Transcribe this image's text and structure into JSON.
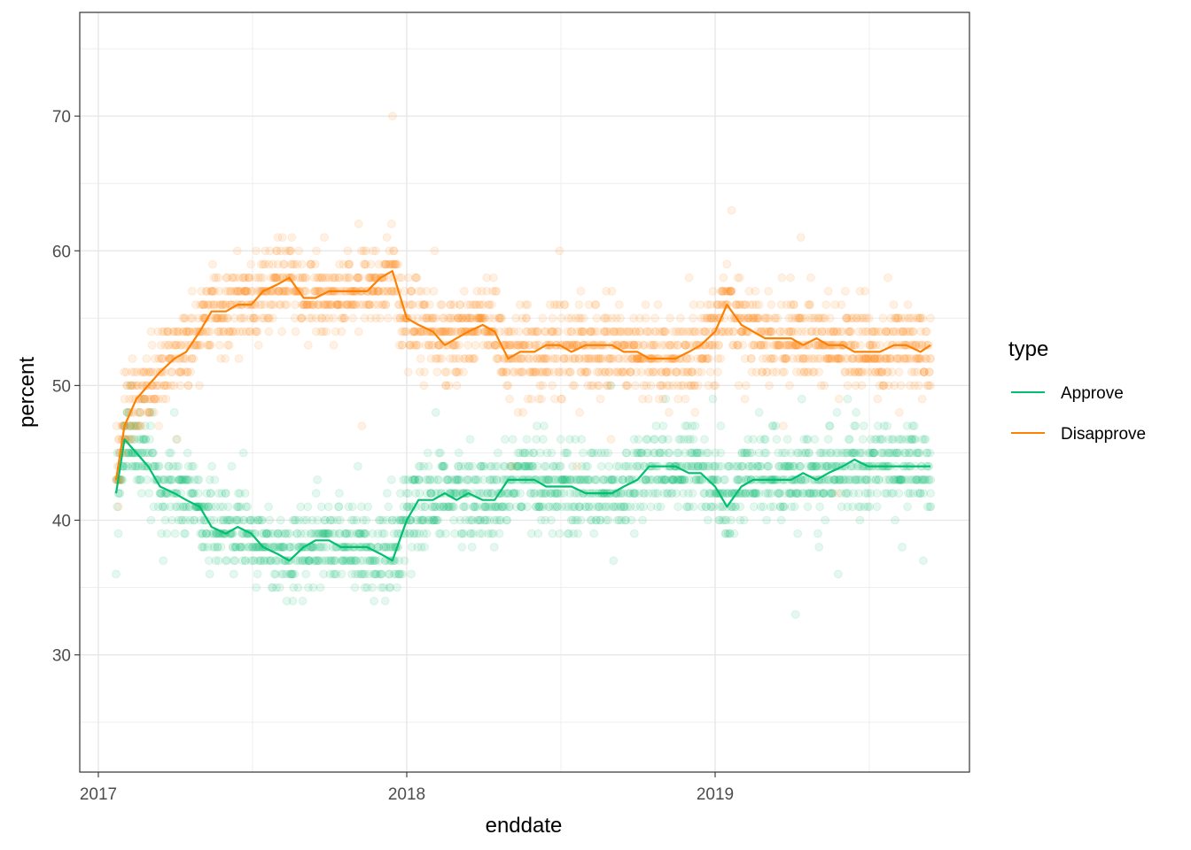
{
  "chart_data": {
    "type": "scatter",
    "xlabel": "enddate",
    "ylabel": "percent",
    "x_type": "date",
    "xlim": [
      "2016-12-10",
      "2019-10-29"
    ],
    "ylim": [
      21.3,
      77.7
    ],
    "x_ticks": [
      {
        "date": "2017-01-01",
        "label": "2017"
      },
      {
        "date": "2018-01-01",
        "label": "2018"
      },
      {
        "date": "2019-01-01",
        "label": "2019"
      }
    ],
    "y_ticks": [
      30,
      40,
      50,
      60,
      70
    ],
    "grid": true,
    "legend": {
      "title": "type",
      "placement": "right"
    },
    "series": [
      {
        "name": "Approve",
        "color": "#00BF6F",
        "line": [
          [
            "2017-01-22",
            42
          ],
          [
            "2017-02-01",
            46
          ],
          [
            "2017-02-15",
            45
          ],
          [
            "2017-03-01",
            44
          ],
          [
            "2017-03-15",
            42.5
          ],
          [
            "2017-04-01",
            42
          ],
          [
            "2017-04-15",
            41.5
          ],
          [
            "2017-05-01",
            41
          ],
          [
            "2017-05-15",
            39.5
          ],
          [
            "2017-06-01",
            39
          ],
          [
            "2017-06-15",
            39.5
          ],
          [
            "2017-07-01",
            39
          ],
          [
            "2017-07-15",
            38
          ],
          [
            "2017-08-01",
            37.5
          ],
          [
            "2017-08-15",
            37
          ],
          [
            "2017-09-01",
            38
          ],
          [
            "2017-09-15",
            38.5
          ],
          [
            "2017-10-01",
            38.5
          ],
          [
            "2017-10-15",
            38
          ],
          [
            "2017-11-01",
            38
          ],
          [
            "2017-11-15",
            38
          ],
          [
            "2017-12-01",
            37.5
          ],
          [
            "2017-12-15",
            37
          ],
          [
            "2018-01-01",
            40
          ],
          [
            "2018-01-15",
            41.5
          ],
          [
            "2018-02-01",
            41.5
          ],
          [
            "2018-02-15",
            42
          ],
          [
            "2018-03-01",
            41.5
          ],
          [
            "2018-03-15",
            42
          ],
          [
            "2018-04-01",
            41.5
          ],
          [
            "2018-04-15",
            41.5
          ],
          [
            "2018-05-01",
            43
          ],
          [
            "2018-05-15",
            43
          ],
          [
            "2018-06-01",
            43
          ],
          [
            "2018-06-15",
            42.5
          ],
          [
            "2018-07-01",
            42.5
          ],
          [
            "2018-07-15",
            42.5
          ],
          [
            "2018-08-01",
            42
          ],
          [
            "2018-08-15",
            42
          ],
          [
            "2018-09-01",
            42
          ],
          [
            "2018-09-15",
            42.5
          ],
          [
            "2018-10-01",
            43
          ],
          [
            "2018-10-15",
            44
          ],
          [
            "2018-11-01",
            44
          ],
          [
            "2018-11-15",
            44
          ],
          [
            "2018-12-01",
            43.5
          ],
          [
            "2018-12-15",
            43.5
          ],
          [
            "2019-01-01",
            42.5
          ],
          [
            "2019-01-15",
            41
          ],
          [
            "2019-02-01",
            42.5
          ],
          [
            "2019-02-15",
            43
          ],
          [
            "2019-03-01",
            43
          ],
          [
            "2019-03-15",
            43
          ],
          [
            "2019-04-01",
            43
          ],
          [
            "2019-04-15",
            43.5
          ],
          [
            "2019-05-01",
            43
          ],
          [
            "2019-05-15",
            43.5
          ],
          [
            "2019-06-01",
            44
          ],
          [
            "2019-06-15",
            44.5
          ],
          [
            "2019-07-01",
            44
          ],
          [
            "2019-07-15",
            44
          ],
          [
            "2019-08-01",
            44
          ],
          [
            "2019-08-15",
            44
          ],
          [
            "2019-09-01",
            44
          ],
          [
            "2019-09-13",
            44
          ]
        ]
      },
      {
        "name": "Disapprove",
        "color": "#FF7F00",
        "line": [
          [
            "2017-01-22",
            43
          ],
          [
            "2017-02-01",
            47
          ],
          [
            "2017-02-15",
            49
          ],
          [
            "2017-03-01",
            50
          ],
          [
            "2017-03-15",
            51
          ],
          [
            "2017-04-01",
            52
          ],
          [
            "2017-04-15",
            52.5
          ],
          [
            "2017-05-01",
            54
          ],
          [
            "2017-05-15",
            55.5
          ],
          [
            "2017-06-01",
            55.5
          ],
          [
            "2017-06-15",
            56
          ],
          [
            "2017-07-01",
            56
          ],
          [
            "2017-07-15",
            57
          ],
          [
            "2017-08-01",
            57.5
          ],
          [
            "2017-08-15",
            58
          ],
          [
            "2017-09-01",
            56.5
          ],
          [
            "2017-09-15",
            56.5
          ],
          [
            "2017-10-01",
            57
          ],
          [
            "2017-10-15",
            57
          ],
          [
            "2017-11-01",
            57
          ],
          [
            "2017-11-15",
            57
          ],
          [
            "2017-12-01",
            58
          ],
          [
            "2017-12-15",
            58.5
          ],
          [
            "2018-01-01",
            55
          ],
          [
            "2018-01-15",
            54.5
          ],
          [
            "2018-02-01",
            54
          ],
          [
            "2018-02-15",
            53
          ],
          [
            "2018-03-01",
            53.5
          ],
          [
            "2018-03-15",
            54
          ],
          [
            "2018-04-01",
            54.5
          ],
          [
            "2018-04-15",
            54
          ],
          [
            "2018-05-01",
            52
          ],
          [
            "2018-05-15",
            52.5
          ],
          [
            "2018-06-01",
            52.5
          ],
          [
            "2018-06-15",
            53
          ],
          [
            "2018-07-01",
            53
          ],
          [
            "2018-07-15",
            52.5
          ],
          [
            "2018-08-01",
            53
          ],
          [
            "2018-08-15",
            53
          ],
          [
            "2018-09-01",
            53
          ],
          [
            "2018-09-15",
            52.5
          ],
          [
            "2018-10-01",
            52.5
          ],
          [
            "2018-10-15",
            52
          ],
          [
            "2018-11-01",
            52
          ],
          [
            "2018-11-15",
            52
          ],
          [
            "2018-12-01",
            52.5
          ],
          [
            "2018-12-15",
            53
          ],
          [
            "2019-01-01",
            54
          ],
          [
            "2019-01-15",
            56
          ],
          [
            "2019-02-01",
            54.5
          ],
          [
            "2019-02-15",
            54
          ],
          [
            "2019-03-01",
            53.5
          ],
          [
            "2019-03-15",
            53.5
          ],
          [
            "2019-04-01",
            53.5
          ],
          [
            "2019-04-15",
            53
          ],
          [
            "2019-05-01",
            53.5
          ],
          [
            "2019-05-15",
            53
          ],
          [
            "2019-06-01",
            53
          ],
          [
            "2019-06-15",
            52.5
          ],
          [
            "2019-07-01",
            52.5
          ],
          [
            "2019-07-15",
            52.5
          ],
          [
            "2019-08-01",
            53
          ],
          [
            "2019-08-15",
            53
          ],
          [
            "2019-09-01",
            52.5
          ],
          [
            "2019-09-13",
            53
          ]
        ]
      }
    ]
  }
}
